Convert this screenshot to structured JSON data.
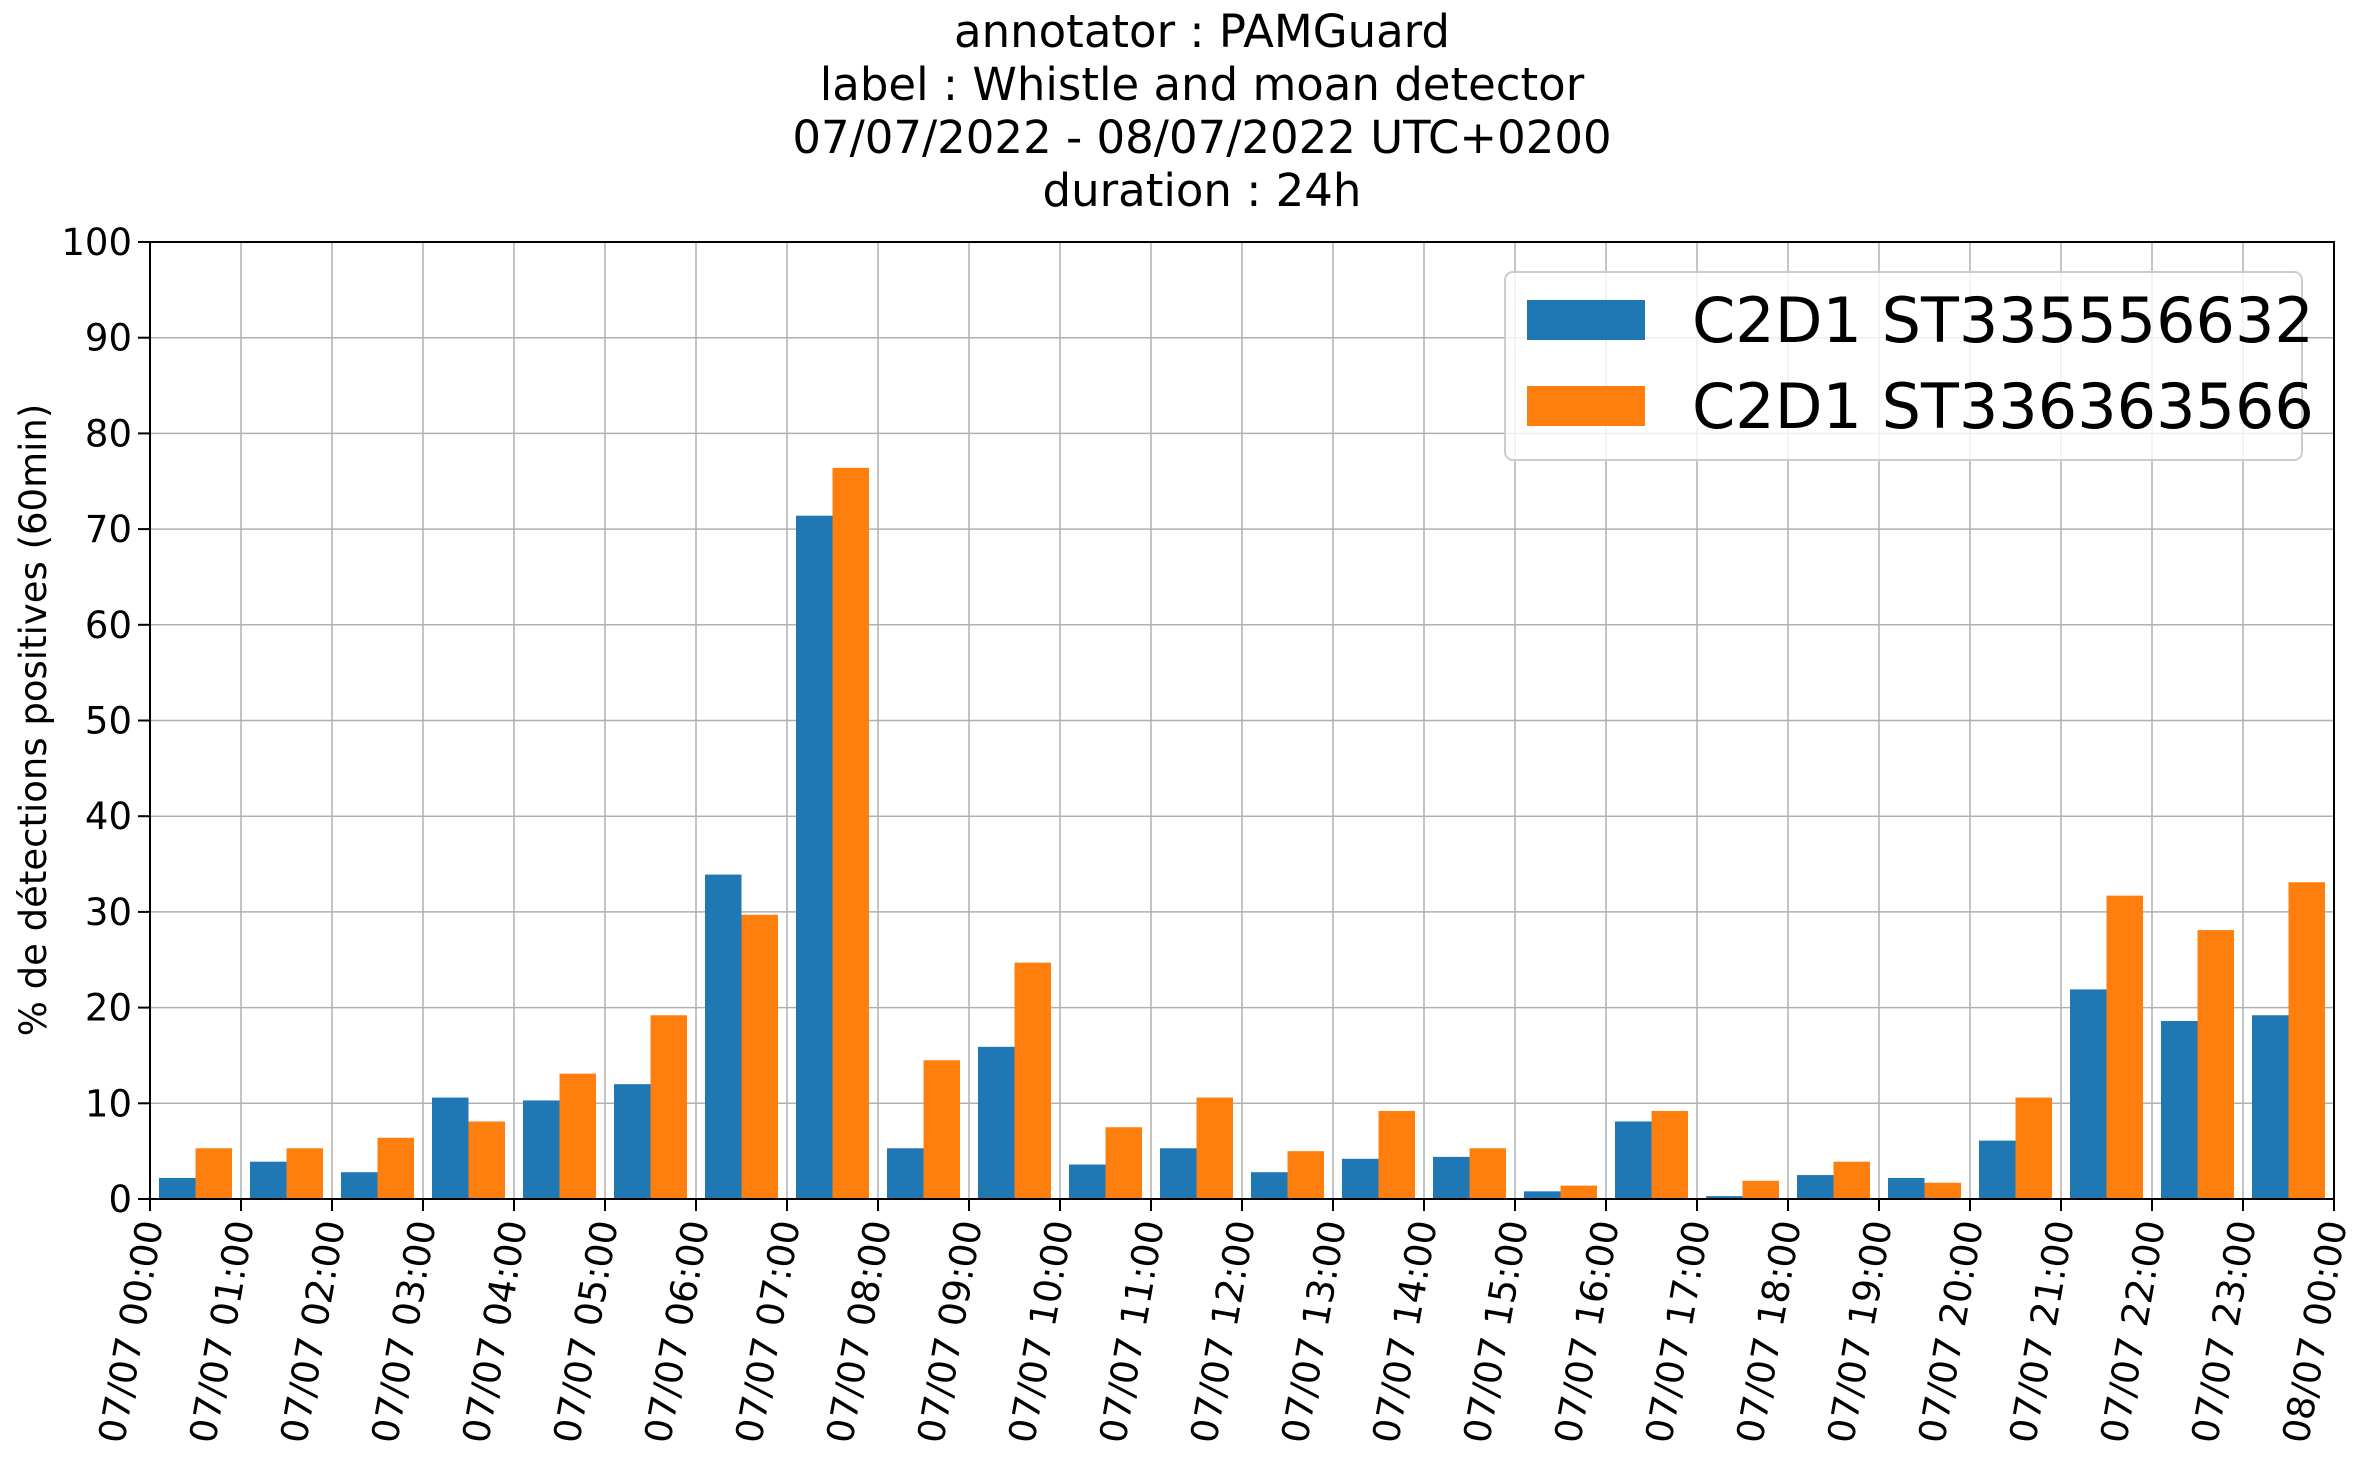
{
  "chart_data": {
    "type": "bar",
    "title_lines": [
      "annotator : PAMGuard",
      "label : Whistle and moan detector",
      "07/07/2022 - 08/07/2022 UTC+0200",
      "duration : 24h"
    ],
    "xlabel": "",
    "ylabel": "% de détections positives (60min)",
    "ylim": [
      0,
      100
    ],
    "yticks": [
      0,
      10,
      20,
      30,
      40,
      50,
      60,
      70,
      80,
      90,
      100
    ],
    "x_tick_labels": [
      "07/07 00:00",
      "07/07 01:00",
      "07/07 02:00",
      "07/07 03:00",
      "07/07 04:00",
      "07/07 05:00",
      "07/07 06:00",
      "07/07 07:00",
      "07/07 08:00",
      "07/07 09:00",
      "07/07 10:00",
      "07/07 11:00",
      "07/07 12:00",
      "07/07 13:00",
      "07/07 14:00",
      "07/07 15:00",
      "07/07 16:00",
      "07/07 17:00",
      "07/07 18:00",
      "07/07 19:00",
      "07/07 20:00",
      "07/07 21:00",
      "07/07 22:00",
      "07/07 23:00",
      "08/07 00:00"
    ],
    "grid": true,
    "legend_position": "top-right",
    "series": [
      {
        "name": "C2D1 ST335556632",
        "color": "#1f77b4",
        "values": [
          2.2,
          3.9,
          2.8,
          10.6,
          10.3,
          12.0,
          33.9,
          71.4,
          5.3,
          15.9,
          3.6,
          5.3,
          2.8,
          4.2,
          4.4,
          0.8,
          8.1,
          0.3,
          2.5,
          2.2,
          6.1,
          21.9,
          18.6,
          19.2
        ]
      },
      {
        "name": "C2D1 ST336363566",
        "color": "#ff7f0e",
        "values": [
          5.3,
          5.3,
          6.4,
          8.1,
          13.1,
          19.2,
          29.7,
          76.4,
          14.5,
          24.7,
          7.5,
          10.6,
          5.0,
          9.2,
          5.3,
          1.4,
          9.2,
          1.9,
          3.9,
          1.7,
          10.6,
          31.7,
          28.1,
          33.1
        ]
      }
    ]
  }
}
